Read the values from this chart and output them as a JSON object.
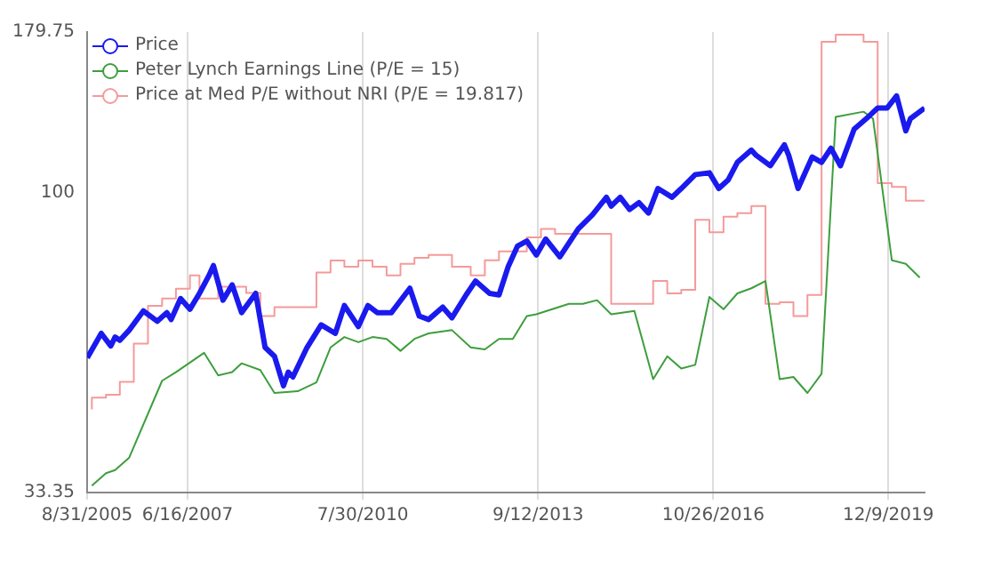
{
  "chart_data": {
    "type": "line",
    "legend": "top left",
    "grid": "x",
    "log": "y",
    "marker": "none",
    "line_style": "solid",
    "xlim": [
      "2005-08-31",
      "2020-08"
    ],
    "xticks": [
      {
        "value": "2005-08-31",
        "label": "8/31/2005"
      },
      {
        "value": "2007-06-16",
        "label": "6/16/2007"
      },
      {
        "value": "2010-07-30",
        "label": "7/30/2010"
      },
      {
        "value": "2013-09-12",
        "label": "9/12/2013"
      },
      {
        "value": "2016-10-26",
        "label": "10/26/2016"
      },
      {
        "value": "2019-12-09",
        "label": "12/9/2019"
      }
    ],
    "ylim": [
      33.35,
      179.75
    ],
    "yticks": [
      33.35,
      100,
      179.75
    ],
    "series": [
      {
        "name": "Price",
        "type": "line",
        "color": "#1a1aee",
        "x": [
          "2005-09",
          "2005-12",
          "2006-02",
          "2006-03",
          "2006-04",
          "2006-06",
          "2006-09",
          "2006-12",
          "2007-02",
          "2007-03",
          "2007-05",
          "2007-07",
          "2007-09",
          "2007-11",
          "2007-12",
          "2008-02",
          "2008-04",
          "2008-05",
          "2008-06",
          "2008-09",
          "2008-11",
          "2009-01",
          "2009-03",
          "2009-04",
          "2009-05",
          "2009-08",
          "2009-11",
          "2010-02",
          "2010-04",
          "2010-07",
          "2010-09",
          "2010-11",
          "2011-02",
          "2011-06",
          "2011-08",
          "2011-10",
          "2012-01",
          "2012-03",
          "2012-06",
          "2012-08",
          "2012-11",
          "2013-01",
          "2013-03",
          "2013-05",
          "2013-07",
          "2013-09",
          "2013-11",
          "2014-02",
          "2014-06",
          "2014-09",
          "2014-12",
          "2015-01",
          "2015-03",
          "2015-05",
          "2015-07",
          "2015-09",
          "2015-11",
          "2016-02",
          "2016-04",
          "2016-07",
          "2016-10",
          "2016-12",
          "2017-02",
          "2017-04",
          "2017-07",
          "2017-08",
          "2017-11",
          "2018-02",
          "2018-03",
          "2018-05",
          "2018-08",
          "2018-10",
          "2018-12",
          "2019-02",
          "2019-05",
          "2019-08",
          "2019-10",
          "2019-12",
          "2020-02",
          "2020-04",
          "2020-05",
          "2020-08"
        ],
        "values": [
          54.6,
          59.7,
          57.0,
          58.9,
          58.2,
          60.4,
          64.8,
          62.4,
          64.4,
          62.8,
          67.8,
          65.2,
          69.1,
          73.7,
          76.5,
          67.4,
          71.3,
          67.8,
          64.4,
          69.1,
          56.7,
          54.9,
          49.3,
          51.8,
          50.9,
          56.7,
          61.6,
          59.7,
          66.1,
          61.2,
          66.1,
          64.4,
          64.4,
          70.4,
          63.6,
          62.8,
          65.7,
          63.2,
          68.7,
          72.3,
          69.1,
          68.7,
          76.1,
          82.1,
          83.7,
          79.5,
          84.3,
          79.0,
          87.5,
          92.1,
          98.2,
          95.1,
          98.2,
          93.9,
          96.3,
          92.7,
          101.4,
          98.2,
          101.4,
          106.7,
          107.4,
          101.4,
          104.7,
          111.6,
          116.7,
          114.5,
          110.2,
          119.0,
          114.5,
          101.4,
          113.8,
          111.6,
          117.5,
          110.2,
          126.0,
          131.8,
          136.1,
          136.1,
          142.3,
          125.2,
          130.9,
          136.1
        ]
      },
      {
        "name": "Peter Lynch Earnings Line (P/E = 15)",
        "type": "line",
        "color": "#3d9e3d",
        "x": [
          "2005-10",
          "2006-01",
          "2006-03",
          "2006-06",
          "2007-01",
          "2007-04",
          "2007-10",
          "2008-01",
          "2008-04",
          "2008-06",
          "2008-10",
          "2009-01",
          "2009-06",
          "2009-10",
          "2010-01",
          "2010-04",
          "2010-07",
          "2010-10",
          "2011-01",
          "2011-04",
          "2011-07",
          "2011-10",
          "2012-03",
          "2012-07",
          "2012-10",
          "2013-01",
          "2013-04",
          "2013-07",
          "2013-09",
          "2014-04",
          "2014-07",
          "2014-10",
          "2015-01",
          "2015-06",
          "2015-10",
          "2016-01",
          "2016-04",
          "2016-07",
          "2016-10",
          "2017-01",
          "2017-04",
          "2017-07",
          "2017-10",
          "2018-01",
          "2018-04",
          "2018-07",
          "2018-10",
          "2019-01",
          "2019-07",
          "2019-09",
          "2020-01",
          "2020-04",
          "2020-07"
        ],
        "values": [
          34.2,
          35.8,
          36.2,
          37.9,
          50.2,
          51.8,
          55.6,
          51.2,
          51.8,
          53.5,
          52.2,
          48.0,
          48.3,
          49.9,
          56.7,
          58.9,
          57.8,
          58.9,
          58.5,
          56.0,
          58.5,
          59.7,
          60.4,
          56.7,
          56.3,
          58.5,
          58.5,
          63.6,
          64.0,
          66.5,
          66.5,
          67.4,
          64.0,
          64.8,
          50.5,
          54.9,
          52.5,
          53.2,
          68.2,
          65.2,
          69.1,
          70.4,
          72.3,
          50.5,
          50.9,
          48.0,
          51.5,
          131.8,
          134.3,
          130.9,
          78.0,
          77.0,
          73.2
        ]
      },
      {
        "name": "Price at Med P/E without NRI (P/E = 19.817)",
        "type": "step",
        "color": "#f59a9a",
        "x": [
          "2005-10",
          "2006-01",
          "2006-04",
          "2006-07",
          "2006-10",
          "2007-01",
          "2007-04",
          "2007-07",
          "2007-09",
          "2008-01",
          "2008-07",
          "2008-10",
          "2009-01",
          "2009-10",
          "2010-01",
          "2010-04",
          "2010-07",
          "2010-10",
          "2011-01",
          "2011-04",
          "2011-07",
          "2011-10",
          "2012-03",
          "2012-07",
          "2012-10",
          "2013-01",
          "2013-07",
          "2013-10",
          "2014-01",
          "2015-01",
          "2015-10",
          "2016-01",
          "2016-04",
          "2016-07",
          "2016-10",
          "2017-01",
          "2017-04",
          "2017-07",
          "2017-10",
          "2018-01",
          "2018-04",
          "2018-07",
          "2018-10",
          "2019-01",
          "2019-07",
          "2019-10",
          "2020-01",
          "2020-04",
          "2020-07",
          "2020-08"
        ],
        "values": [
          45.2,
          47.2,
          47.7,
          50.0,
          57.5,
          66.0,
          67.8,
          70.3,
          73.8,
          67.8,
          70.8,
          69.2,
          63.6,
          65.7,
          74.6,
          77.9,
          76.2,
          77.9,
          76.2,
          73.8,
          77.0,
          78.7,
          79.5,
          76.2,
          73.8,
          78.0,
          80.6,
          84.8,
          87.5,
          85.9,
          66.5,
          72.3,
          69.1,
          70.0,
          90.4,
          86.4,
          91.5,
          92.7,
          95.1,
          66.5,
          66.9,
          63.6,
          68.7,
          173.5,
          178.0,
          173.5,
          103.4,
          102.0,
          97.0,
          97.0
        ]
      }
    ]
  }
}
